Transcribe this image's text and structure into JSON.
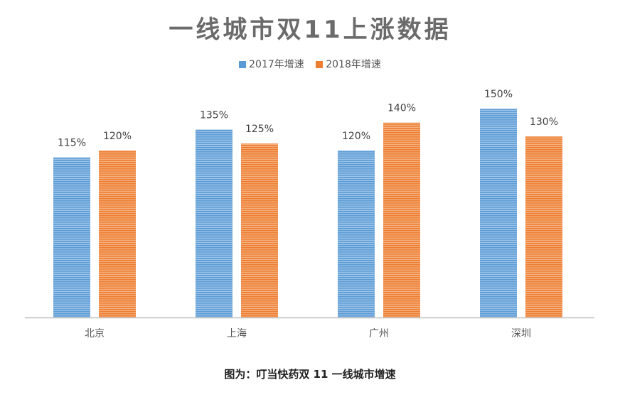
{
  "chart_data": {
    "type": "bar",
    "title": "一线城市双11上涨数据",
    "categories": [
      "北京",
      "上海",
      "广州",
      "深圳"
    ],
    "series": [
      {
        "name": "2017年增速",
        "values": [
          115,
          135,
          120,
          150
        ],
        "labels": [
          "115%",
          "135%",
          "120%",
          "150%"
        ],
        "color": "#5b9bd5"
      },
      {
        "name": "2018年增速",
        "values": [
          120,
          125,
          140,
          130
        ],
        "labels": [
          "120%",
          "125%",
          "140%",
          "130%"
        ],
        "color": "#ed7d31"
      }
    ],
    "ylim": [
      0,
      150
    ],
    "grid": false,
    "legend": "top"
  },
  "caption": "图为：叮当快药双 11 一线城市增速"
}
